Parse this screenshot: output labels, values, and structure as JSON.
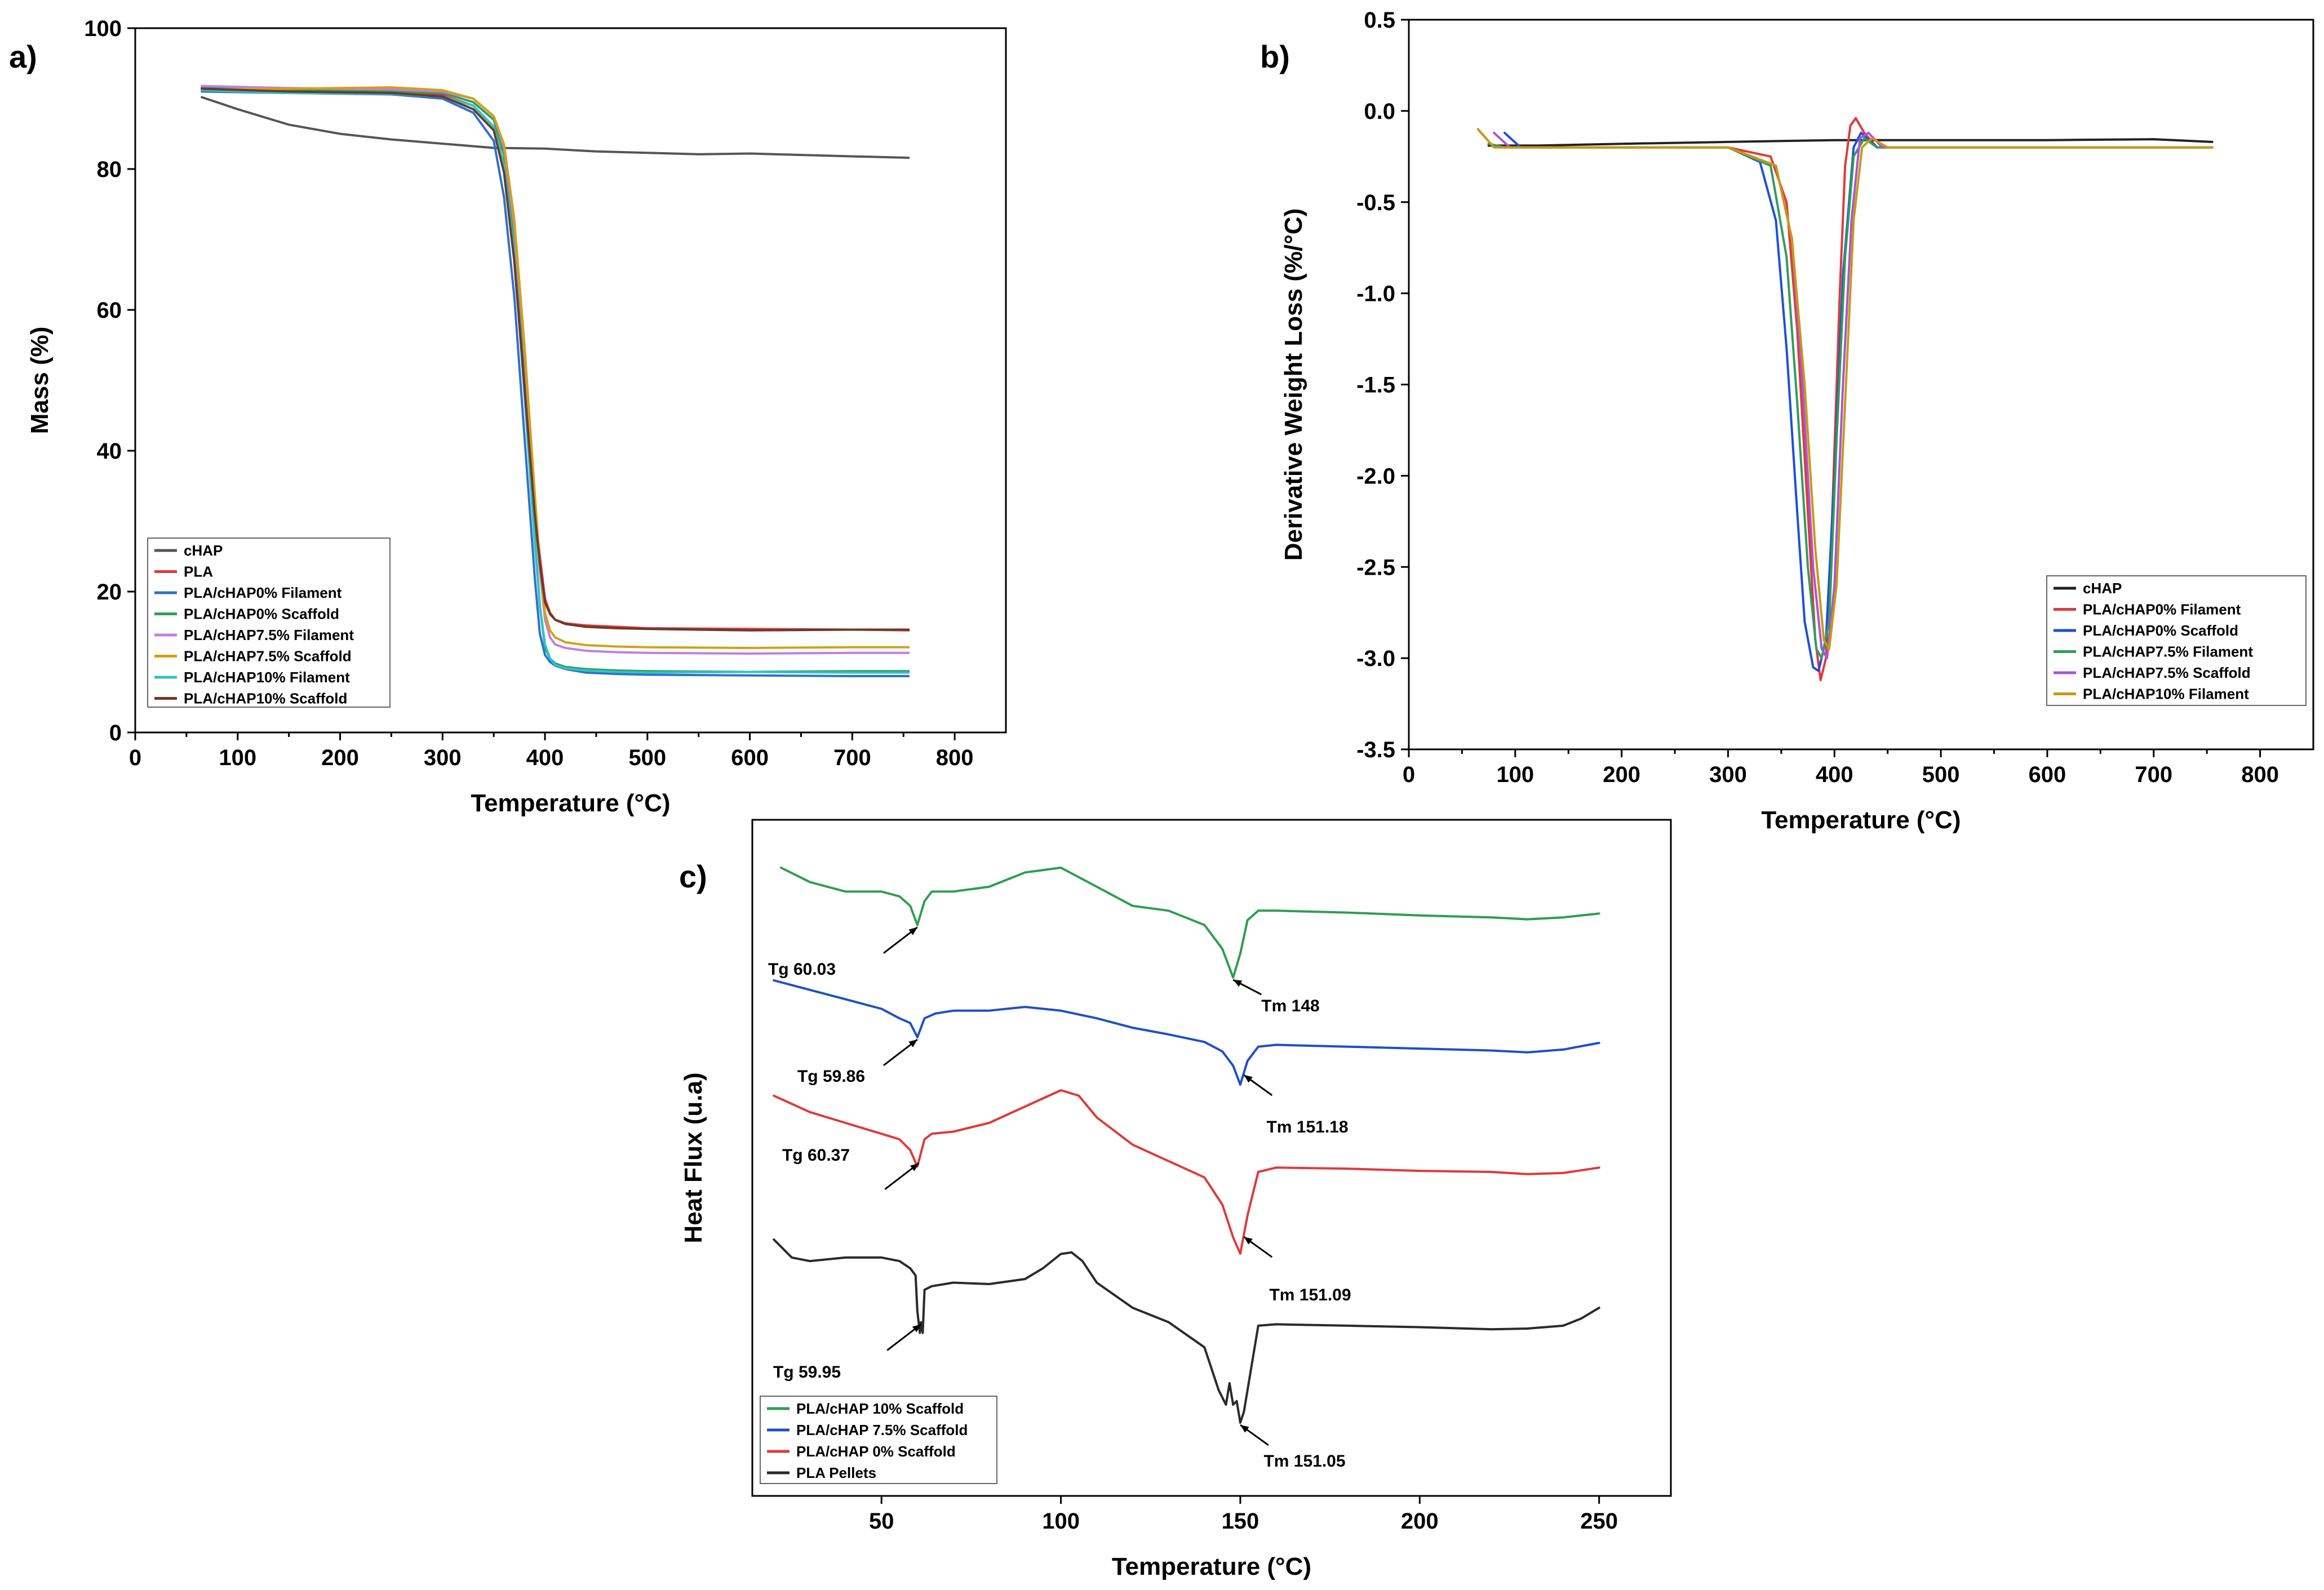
{
  "chart_data": [
    {
      "panel": "a)",
      "type": "line",
      "xlabel": "Temperature (°C)",
      "ylabel": "Mass (%)",
      "xlim": [
        0,
        850
      ],
      "ylim": [
        0,
        100
      ],
      "xticks": [
        0,
        100,
        200,
        300,
        400,
        500,
        600,
        700,
        800
      ],
      "yticks": [
        0,
        20,
        40,
        60,
        80,
        100
      ],
      "legend_position": "bottom-left",
      "series": [
        {
          "name": "cHAP",
          "color": "#555555",
          "x": [
            65,
            100,
            150,
            200,
            250,
            300,
            350,
            400,
            450,
            500,
            550,
            600,
            650,
            700,
            755
          ],
          "y": [
            90.2,
            88.5,
            86.3,
            85.0,
            84.2,
            83.6,
            83.0,
            82.9,
            82.5,
            82.3,
            82.1,
            82.2,
            82.0,
            81.8,
            81.6
          ]
        },
        {
          "name": "PLA",
          "color": "#e03a3a",
          "x": [
            65,
            150,
            250,
            300,
            330,
            350,
            360,
            370,
            380,
            390,
            395,
            400,
            405,
            410,
            420,
            440,
            470,
            500,
            600,
            700,
            755
          ],
          "y": [
            91.6,
            91.2,
            91.0,
            90.5,
            89.0,
            86.0,
            80.0,
            68.0,
            50.0,
            32.0,
            25.0,
            19.0,
            17.0,
            16.0,
            15.5,
            15.2,
            15.0,
            14.8,
            14.7,
            14.6,
            14.5
          ]
        },
        {
          "name": "PLA/cHAP0% Filament",
          "color": "#2f6fd0",
          "x": [
            65,
            150,
            250,
            300,
            330,
            350,
            360,
            370,
            380,
            390,
            395,
            400,
            405,
            410,
            420,
            440,
            470,
            500,
            600,
            700,
            755
          ],
          "y": [
            91.0,
            90.8,
            90.6,
            90.0,
            88.0,
            84.0,
            76.0,
            62.0,
            42.0,
            22.0,
            14.0,
            11.0,
            10.0,
            9.5,
            9.0,
            8.5,
            8.3,
            8.2,
            8.1,
            8.0,
            8.0
          ]
        },
        {
          "name": "PLA/cHAP0% Scaffold",
          "color": "#2e9e5b",
          "x": [
            65,
            150,
            250,
            300,
            330,
            350,
            360,
            370,
            380,
            390,
            395,
            400,
            405,
            410,
            420,
            440,
            470,
            500,
            600,
            700,
            755
          ],
          "y": [
            91.5,
            91.2,
            91.0,
            90.8,
            89.5,
            87.0,
            82.0,
            70.0,
            50.0,
            28.0,
            18.0,
            12.0,
            10.5,
            9.8,
            9.3,
            9.0,
            8.8,
            8.7,
            8.6,
            8.7,
            8.7
          ]
        },
        {
          "name": "PLA/cHAP7.5% Filament",
          "color": "#c27ee0",
          "x": [
            65,
            150,
            250,
            300,
            330,
            350,
            360,
            370,
            380,
            390,
            395,
            400,
            405,
            410,
            420,
            440,
            470,
            500,
            600,
            700,
            755
          ],
          "y": [
            91.8,
            91.5,
            91.3,
            91.0,
            90.0,
            87.5,
            83.0,
            72.0,
            54.0,
            33.0,
            23.0,
            16.0,
            13.5,
            12.5,
            12.0,
            11.6,
            11.4,
            11.3,
            11.2,
            11.3,
            11.3
          ]
        },
        {
          "name": "PLA/cHAP7.5% Scaffold",
          "color": "#d4a017",
          "x": [
            65,
            150,
            250,
            300,
            330,
            350,
            360,
            370,
            380,
            390,
            395,
            400,
            405,
            410,
            420,
            440,
            470,
            500,
            600,
            700,
            755
          ],
          "y": [
            91.3,
            91.4,
            91.6,
            91.2,
            90.0,
            87.5,
            83.5,
            73.0,
            55.0,
            34.0,
            24.0,
            17.0,
            14.5,
            13.5,
            12.8,
            12.4,
            12.2,
            12.1,
            12.0,
            12.1,
            12.1
          ]
        },
        {
          "name": "PLA/cHAP10% Filament",
          "color": "#2ec4c4",
          "x": [
            65,
            150,
            250,
            300,
            330,
            350,
            360,
            370,
            380,
            390,
            395,
            400,
            405,
            410,
            420,
            440,
            470,
            500,
            600,
            700,
            755
          ],
          "y": [
            91.2,
            90.8,
            90.7,
            90.3,
            89.0,
            86.0,
            80.5,
            68.0,
            48.0,
            27.0,
            18.0,
            12.5,
            10.5,
            9.6,
            9.1,
            8.8,
            8.6,
            8.5,
            8.6,
            8.5,
            8.5
          ]
        },
        {
          "name": "PLA/cHAP10% Scaffold",
          "color": "#6b3a2a",
          "x": [
            65,
            150,
            250,
            300,
            330,
            350,
            360,
            370,
            380,
            390,
            395,
            400,
            405,
            410,
            420,
            440,
            470,
            500,
            600,
            700,
            755
          ],
          "y": [
            91.4,
            91.0,
            90.8,
            90.3,
            88.5,
            85.5,
            79.5,
            67.0,
            49.0,
            31.0,
            24.0,
            18.5,
            16.8,
            16.0,
            15.4,
            15.0,
            14.8,
            14.7,
            14.5,
            14.6,
            14.6
          ]
        }
      ]
    },
    {
      "panel": "b)",
      "type": "line",
      "xlabel": "Temperature (°C)",
      "ylabel": "Derivative Weight Loss (%/°C)",
      "xlim": [
        0,
        850
      ],
      "ylim": [
        -3.5,
        0.5
      ],
      "xticks": [
        0,
        100,
        200,
        300,
        400,
        500,
        600,
        700,
        800
      ],
      "yticks": [
        0.5,
        0.0,
        -0.5,
        -1.0,
        -1.5,
        -2.0,
        -2.5,
        -3.0,
        -3.5
      ],
      "legend_position": "bottom-right",
      "series": [
        {
          "name": "cHAP",
          "color": "#222222",
          "x": [
            75,
            120,
            200,
            300,
            400,
            500,
            600,
            700,
            755
          ],
          "y": [
            -0.19,
            -0.19,
            -0.18,
            -0.17,
            -0.16,
            -0.16,
            -0.16,
            -0.155,
            -0.17
          ]
        },
        {
          "name": "PLA/cHAP0% Filament",
          "color": "#e03a3a",
          "x": [
            65,
            80,
            100,
            200,
            300,
            340,
            355,
            365,
            375,
            382,
            387,
            392,
            398,
            405,
            410,
            415,
            420,
            428,
            440,
            500,
            600,
            700,
            755
          ],
          "y": [
            -0.1,
            -0.2,
            -0.2,
            -0.2,
            -0.2,
            -0.25,
            -0.5,
            -1.2,
            -2.2,
            -2.9,
            -3.12,
            -3.0,
            -2.2,
            -1.0,
            -0.3,
            -0.08,
            -0.04,
            -0.12,
            -0.2,
            -0.2,
            -0.2,
            -0.2,
            -0.2
          ]
        },
        {
          "name": "PLA/cHAP0% Scaffold",
          "color": "#1f4fd8",
          "x": [
            90,
            105,
            200,
            300,
            330,
            345,
            355,
            365,
            372,
            380,
            385,
            392,
            400,
            408,
            418,
            425,
            440,
            500,
            600,
            700,
            755
          ],
          "y": [
            -0.12,
            -0.2,
            -0.2,
            -0.2,
            -0.28,
            -0.6,
            -1.3,
            -2.2,
            -2.8,
            -3.05,
            -3.07,
            -2.9,
            -2.0,
            -0.9,
            -0.2,
            -0.12,
            -0.2,
            -0.2,
            -0.2,
            -0.2,
            -0.2
          ]
        },
        {
          "name": "PLA/cHAP7.5% Filament",
          "color": "#2e9e5b",
          "x": [
            75,
            90,
            200,
            300,
            340,
            355,
            365,
            375,
            383,
            388,
            395,
            402,
            410,
            418,
            428,
            440,
            500,
            600,
            755
          ],
          "y": [
            -0.18,
            -0.2,
            -0.2,
            -0.2,
            -0.3,
            -0.8,
            -1.6,
            -2.5,
            -2.95,
            -3.0,
            -2.8,
            -1.8,
            -0.8,
            -0.25,
            -0.15,
            -0.2,
            -0.2,
            -0.2,
            -0.2
          ]
        },
        {
          "name": "PLA/cHAP7.5% Scaffold",
          "color": "#a855d8",
          "x": [
            80,
            95,
            200,
            300,
            345,
            360,
            370,
            380,
            388,
            393,
            400,
            408,
            416,
            424,
            432,
            445,
            500,
            600,
            755
          ],
          "y": [
            -0.12,
            -0.2,
            -0.2,
            -0.2,
            -0.3,
            -0.7,
            -1.5,
            -2.5,
            -2.95,
            -3.0,
            -2.6,
            -1.5,
            -0.6,
            -0.15,
            -0.12,
            -0.2,
            -0.2,
            -0.2,
            -0.2
          ]
        },
        {
          "name": "PLA/cHAP10% Filament",
          "color": "#c79a12",
          "x": [
            65,
            80,
            200,
            300,
            345,
            360,
            372,
            382,
            390,
            395,
            402,
            410,
            418,
            426,
            435,
            450,
            500,
            600,
            755
          ],
          "y": [
            -0.1,
            -0.2,
            -0.2,
            -0.2,
            -0.3,
            -0.7,
            -1.5,
            -2.4,
            -2.9,
            -2.95,
            -2.6,
            -1.6,
            -0.6,
            -0.2,
            -0.15,
            -0.2,
            -0.2,
            -0.2,
            -0.2
          ]
        }
      ]
    },
    {
      "panel": "c)",
      "type": "line",
      "xlabel": "Temperature (°C)",
      "ylabel": "Heat Flux (u.a)",
      "xlim": [
        14,
        270
      ],
      "ylim": [
        0,
        100
      ],
      "xticks": [
        50,
        100,
        150,
        200,
        250
      ],
      "yticks": [],
      "legend_position": "bottom-left",
      "annotations": [
        {
          "text": "Tg 60.03",
          "series": 0,
          "x": 60
        },
        {
          "text": "Tm 148",
          "series": 0,
          "x": 148
        },
        {
          "text": "Tg 59.86",
          "series": 1,
          "x": 60
        },
        {
          "text": "Tm 151.18",
          "series": 1,
          "x": 151
        },
        {
          "text": "Tg 60.37",
          "series": 2,
          "x": 60.4
        },
        {
          "text": "Tm 151.09",
          "series": 2,
          "x": 151
        },
        {
          "text": "Tg 59.95",
          "series": 3,
          "x": 61
        },
        {
          "text": "Tm 151.05",
          "series": 3,
          "x": 150
        }
      ],
      "series": [
        {
          "name": "PLA/cHAP 10% Scaffold",
          "color": "#2e9e4f",
          "x": [
            22,
            30,
            40,
            50,
            55,
            58,
            60,
            62,
            64,
            70,
            80,
            90,
            100,
            110,
            120,
            130,
            140,
            145,
            148,
            150,
            152,
            155,
            160,
            180,
            200,
            220,
            230,
            240,
            250
          ],
          "y": [
            95,
            93.5,
            92.5,
            92.5,
            92,
            91,
            89,
            91.5,
            92.5,
            92.5,
            93,
            94.5,
            95,
            93,
            91,
            90.5,
            89,
            86.5,
            83.5,
            86,
            89.5,
            90.5,
            90.5,
            90.3,
            90,
            89.8,
            89.6,
            89.8,
            90.2
          ]
        },
        {
          "name": "PLA/cHAP 7.5% Scaffold",
          "color": "#1f4fc8",
          "x": [
            20,
            30,
            40,
            50,
            55,
            58,
            60,
            62,
            65,
            70,
            80,
            90,
            100,
            110,
            120,
            130,
            140,
            145,
            148,
            150,
            152,
            155,
            160,
            180,
            200,
            220,
            230,
            240,
            250
          ],
          "y": [
            84,
            83,
            82,
            81,
            80,
            79.5,
            78,
            80,
            80.5,
            80.8,
            80.8,
            81.2,
            80.8,
            80,
            79,
            78.3,
            77.5,
            76.5,
            75,
            73,
            75.5,
            77,
            77.2,
            77,
            76.8,
            76.6,
            76.4,
            76.7,
            77.4
          ]
        },
        {
          "name": "PLA/cHAP 0% Scaffold",
          "color": "#e03a3a",
          "x": [
            20,
            30,
            40,
            50,
            55,
            58,
            60,
            62,
            64,
            70,
            80,
            90,
            100,
            105,
            110,
            120,
            130,
            140,
            145,
            148,
            150,
            152,
            155,
            160,
            180,
            200,
            220,
            230,
            240,
            250
          ],
          "y": [
            66,
            64.5,
            63.5,
            62.5,
            62,
            61,
            59.5,
            62,
            62.5,
            62.7,
            63.5,
            65,
            66.5,
            66,
            64,
            61.5,
            60,
            58.5,
            56,
            53,
            51.5,
            55,
            59,
            59.4,
            59.3,
            59.1,
            59,
            58.8,
            58.9,
            59.4
          ]
        },
        {
          "name": "PLA Pellets",
          "color": "#2a2a2a",
          "x": [
            20,
            22,
            25,
            30,
            40,
            50,
            55,
            58,
            59.5,
            60,
            60.7,
            61,
            61.5,
            62,
            64,
            70,
            80,
            90,
            95,
            100,
            103,
            106,
            110,
            120,
            130,
            140,
            144,
            146,
            147,
            148,
            149,
            150,
            151,
            152,
            155,
            160,
            180,
            200,
            220,
            230,
            240,
            245,
            250
          ],
          "y": [
            46,
            45,
            43.5,
            43,
            43.5,
            43.5,
            43,
            42,
            41,
            36,
            33,
            34.5,
            33,
            39,
            39.5,
            40,
            39.8,
            40.5,
            42,
            44,
            44.2,
            43,
            40,
            36.5,
            34.5,
            31,
            25,
            23,
            26,
            23,
            23.5,
            20.5,
            22,
            25,
            34,
            34.2,
            34,
            33.8,
            33.5,
            33.6,
            34,
            35,
            36.5
          ]
        }
      ]
    }
  ]
}
